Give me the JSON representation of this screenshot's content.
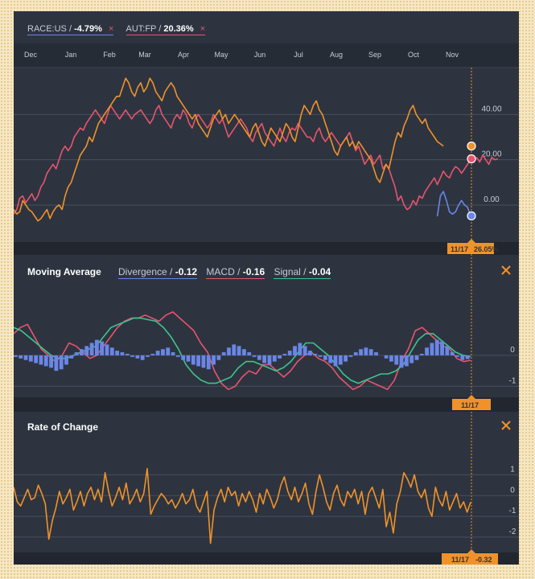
{
  "colors": {
    "background": "#2d343f",
    "grid": "#5a6270",
    "race": "#6a86e8",
    "aut": "#e8546e",
    "orange": "#f0922b",
    "signal": "#3cc48e",
    "text": "#c7ccd6"
  },
  "legend": [
    {
      "symbol": "RACE:US",
      "sep": " / ",
      "value": "-4.79%",
      "close": "×"
    },
    {
      "symbol": "AUT:FP",
      "sep": " / ",
      "value": "20.36%",
      "close": "×"
    }
  ],
  "ma_panel": {
    "title": "Moving Average",
    "items": [
      {
        "label": "Divergence",
        "sep": " / ",
        "value": "-0.12"
      },
      {
        "label": "MACD",
        "sep": " / ",
        "value": "-0.16"
      },
      {
        "label": "Signal",
        "sep": " / ",
        "value": "-0.04"
      }
    ],
    "close_icon": "close-x-icon"
  },
  "roc_panel": {
    "title": "Rate of Change",
    "close_icon": "close-x-icon"
  },
  "cursor": {
    "date": "11/17",
    "price_readout": "26.05%",
    "roc_readout": "-0.32"
  },
  "chart_data": [
    {
      "type": "line",
      "title": "",
      "x_labels": [
        "Dec",
        "Jan",
        "Feb",
        "Mar",
        "Apr",
        "May",
        "Jun",
        "Jul",
        "Aug",
        "Sep",
        "Oct",
        "Nov"
      ],
      "y_ticks": [
        "40.00",
        "20.00",
        "0.00"
      ],
      "y_tick_values": [
        40,
        20,
        0
      ],
      "ylim": [
        -16,
        60
      ],
      "grid": true,
      "series": [
        {
          "name": "RACE:US",
          "color": "#6a86e8",
          "start_index": 140,
          "values": [
            -5,
            4,
            6,
            2,
            -3,
            -4,
            -3,
            0,
            2,
            0,
            -1,
            -4.8
          ]
        },
        {
          "name": "AUT:FP",
          "color": "#e8546e",
          "start_index": 0,
          "values": [
            -4,
            -2,
            3,
            4,
            1,
            3,
            5,
            2,
            4,
            8,
            10,
            14,
            16,
            18,
            16,
            20,
            24,
            26,
            24,
            26,
            30,
            32,
            34,
            33,
            36,
            38,
            40,
            42,
            40,
            38,
            36,
            40,
            44,
            42,
            40,
            38,
            40,
            42,
            40,
            38,
            40,
            41,
            42,
            40,
            38,
            36,
            38,
            42,
            44,
            40,
            38,
            36,
            34,
            38,
            40,
            38,
            42,
            40,
            36,
            34,
            38,
            40,
            38,
            36,
            34,
            36,
            40,
            38,
            36,
            38,
            34,
            30,
            32,
            34,
            36,
            38,
            36,
            34,
            30,
            28,
            32,
            34,
            36,
            32,
            30,
            28,
            26,
            30,
            34,
            30,
            28,
            32,
            34,
            33,
            36,
            34,
            32,
            30,
            30,
            28,
            32,
            34,
            30,
            28,
            30,
            32,
            30,
            28,
            26,
            28,
            30,
            32,
            28,
            24,
            26,
            22,
            18,
            20,
            22,
            18,
            20,
            22,
            16,
            18,
            16,
            12,
            8,
            2,
            4,
            0,
            -2,
            -1,
            2,
            0,
            4,
            3,
            6,
            8,
            10,
            12,
            9,
            12,
            15,
            13,
            12,
            15,
            17,
            16,
            14,
            16,
            18,
            20,
            19,
            21,
            19,
            22,
            20,
            18,
            21,
            20,
            20.4
          ]
        },
        {
          "name": "",
          "color": "#f0922b",
          "start_index": 0,
          "values": [
            -2,
            -4,
            -3,
            2,
            0,
            -2,
            -3,
            -5,
            -7,
            -6,
            -4,
            -2,
            -6,
            -3,
            -1,
            0,
            -2,
            4,
            8,
            10,
            14,
            18,
            22,
            24,
            26,
            30,
            28,
            32,
            36,
            38,
            40,
            42,
            44,
            46,
            48,
            48,
            52,
            56,
            54,
            50,
            48,
            52,
            54,
            50,
            52,
            56,
            54,
            50,
            48,
            46,
            50,
            52,
            54,
            52,
            48,
            46,
            44,
            42,
            40,
            38,
            40,
            36,
            34,
            32,
            30,
            34,
            38,
            40,
            42,
            38,
            40,
            36,
            38,
            40,
            38,
            36,
            34,
            32,
            30,
            34,
            36,
            32,
            28,
            26,
            30,
            34,
            32,
            30,
            28,
            32,
            36,
            34,
            30,
            28,
            34,
            40,
            44,
            42,
            40,
            44,
            46,
            42,
            40,
            36,
            32,
            28,
            24,
            22,
            26,
            28,
            30,
            26,
            28,
            25,
            28,
            26,
            24,
            22,
            20,
            16,
            12,
            10,
            14,
            18,
            16,
            22,
            28,
            32,
            30,
            35,
            38,
            42,
            44,
            40,
            38,
            36,
            38,
            34,
            32,
            30,
            28,
            27,
            26.05
          ]
        }
      ]
    },
    {
      "type": "line",
      "title": "Moving Average",
      "y_ticks": [
        "0",
        "-1"
      ],
      "y_tick_values": [
        0,
        -1
      ],
      "ylim": [
        -1.3,
        1.45
      ],
      "grid": true,
      "series": [
        {
          "name": "MACD",
          "color": "#e8546e",
          "values": [
            0.7,
            0.9,
            1.0,
            0.6,
            0.2,
            0,
            -0.2,
            0,
            0.4,
            0.3,
            0.1,
            -0.1,
            0,
            0.3,
            0.6,
            0.9,
            1.1,
            1.2,
            1.2,
            1.3,
            1.2,
            1.1,
            1.3,
            1.4,
            1.2,
            1.0,
            0.8,
            0.4,
            0.1,
            -0.5,
            -0.9,
            -1.1,
            -1.0,
            -0.7,
            -0.5,
            -0.6,
            -0.3,
            -0.3,
            -0.5,
            -0.7,
            -0.5,
            -0.2,
            0,
            0.1,
            -0.1,
            -0.2,
            -0.4,
            -0.7,
            -0.9,
            -1.1,
            -1.0,
            -0.8,
            -0.9,
            -1.0,
            -1.1,
            -0.8,
            -0.2,
            0.2,
            0.8,
            0.9,
            0.7,
            0.5,
            0.3,
            0.2,
            -0.1,
            -0.2,
            -0.16
          ]
        },
        {
          "name": "Signal",
          "color": "#3cc48e",
          "values": [
            0.9,
            0.8,
            0.6,
            0.4,
            0.2,
            0,
            -0.1,
            -0.1,
            0,
            0.1,
            0.2,
            0.3,
            0.6,
            0.9,
            1.0,
            1.1,
            1.2,
            1.2,
            1.15,
            1.1,
            0.9,
            0.6,
            0.2,
            -0.3,
            -0.6,
            -0.8,
            -0.9,
            -0.9,
            -0.8,
            -0.7,
            -0.4,
            -0.2,
            -0.2,
            -0.3,
            -0.4,
            -0.5,
            -0.4,
            -0.2,
            0.1,
            0.4,
            0.4,
            0.2,
            0,
            -0.3,
            -0.6,
            -0.8,
            -0.9,
            -0.8,
            -0.7,
            -0.6,
            -0.6,
            -0.5,
            -0.3,
            0.1,
            0.5,
            0.7,
            0.7,
            0.5,
            0.3,
            0.1,
            0,
            -0.04
          ]
        },
        {
          "name": "Divergence",
          "color": "#6a86e8",
          "type": "bar",
          "values": [
            -0.05,
            -0.1,
            -0.15,
            -0.2,
            -0.25,
            -0.3,
            -0.35,
            -0.4,
            -0.5,
            -0.45,
            -0.3,
            -0.1,
            0.1,
            0.2,
            0.3,
            0.4,
            0.5,
            0.45,
            0.35,
            0.25,
            0.15,
            0.1,
            0.05,
            -0.05,
            -0.1,
            -0.15,
            -0.05,
            0.05,
            0.15,
            0.2,
            0.25,
            0.1,
            -0.05,
            -0.15,
            -0.2,
            -0.3,
            -0.35,
            -0.4,
            -0.45,
            -0.3,
            -0.15,
            0.1,
            0.25,
            0.35,
            0.3,
            0.2,
            0.1,
            -0.05,
            -0.15,
            -0.25,
            -0.3,
            -0.2,
            -0.1,
            0.05,
            0.15,
            0.3,
            0.4,
            0.3,
            0.15,
            0.05,
            -0.05,
            -0.15,
            -0.25,
            -0.35,
            -0.3,
            -0.2,
            -0.05,
            0.1,
            0.2,
            0.25,
            0.2,
            0.1,
            0,
            -0.1,
            -0.2,
            -0.3,
            -0.4,
            -0.35,
            -0.25,
            -0.15,
            0.05,
            0.25,
            0.4,
            0.5,
            0.45,
            0.3,
            0.1,
            -0.05,
            -0.15,
            -0.12
          ]
        }
      ]
    },
    {
      "type": "line",
      "title": "Rate of Change",
      "y_ticks": [
        "1",
        "0",
        "-1",
        "-2"
      ],
      "y_tick_values": [
        1,
        0,
        -1,
        -2
      ],
      "ylim": [
        -2.7,
        2.1
      ],
      "grid": true,
      "series": [
        {
          "name": "",
          "color": "#f0922b",
          "values": [
            0.4,
            -0.3,
            -0.5,
            -0.1,
            0.3,
            -0.2,
            -0.1,
            0.5,
            0.1,
            -0.4,
            -2.1,
            -1.2,
            -0.6,
            0.2,
            -0.4,
            -0.1,
            0.3,
            -0.7,
            -0.3,
            0.2,
            -0.5,
            0.1,
            0.4,
            -0.2,
            0.3,
            -0.3,
            1.1,
            0.2,
            -0.5,
            -0.1,
            0.4,
            -0.2,
            0.6,
            -0.4,
            -0.1,
            0.3,
            -0.3,
            0.1,
            1.3,
            -0.9,
            -0.5,
            -0.2,
            0.1,
            -0.1,
            -0.4,
            -0.2,
            -0.6,
            -0.3,
            0.1,
            -0.4,
            -0.2,
            0.3,
            -0.5,
            -0.8,
            -0.3,
            0.2,
            -2.3,
            -0.7,
            -0.1,
            0.3,
            -0.3,
            0.4,
            0,
            0.2,
            -0.5,
            0.1,
            -0.3,
            0.2,
            -0.2,
            -0.8,
            0.1,
            -0.4,
            0.3,
            -0.1,
            -0.6,
            -0.2,
            0.5,
            0.9,
            0.2,
            -0.2,
            0.4,
            -0.3,
            0.1,
            0.6,
            -0.4,
            -0.9,
            0.2,
            1.0,
            0.4,
            -0.3,
            -0.7,
            0.1,
            0.5,
            -0.2,
            -0.5,
            0.2,
            -0.1,
            0.3,
            -0.4,
            0.2,
            -0.9,
            0.1,
            0.4,
            -0.1,
            -0.6,
            0.3,
            -1.5,
            -0.8,
            -1.8,
            -0.4,
            0.2,
            1.1,
            0.8,
            0.4,
            1.0,
            0.2,
            -0.1,
            0.3,
            -0.6,
            -1.0,
            0.4,
            -0.2,
            -0.5,
            0.2,
            -0.7,
            -0.3,
            0.1,
            -0.6,
            -0.3,
            -0.8,
            -0.32
          ]
        }
      ]
    }
  ]
}
